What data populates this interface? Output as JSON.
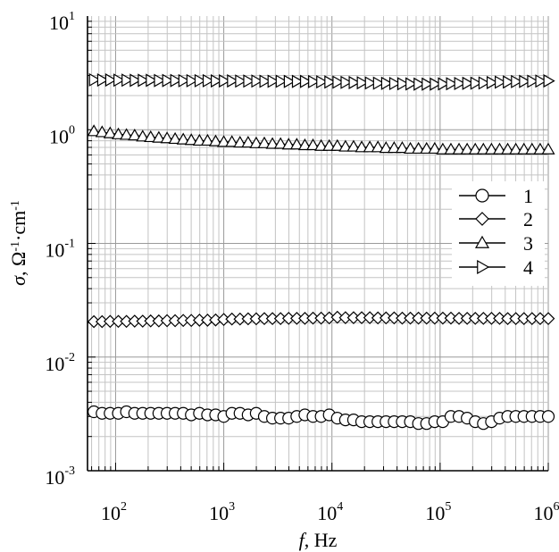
{
  "chart_data": {
    "type": "scatter",
    "title": "",
    "xlabel": {
      "symbol": "f",
      "rest": ", Hz"
    },
    "ylabel": {
      "symbol": "σ",
      "rest": ", Ω",
      "sup1": "-1",
      "mid": "·cm",
      "sup2": "-1"
    },
    "xscale": "log",
    "yscale": "log",
    "xlim": [
      55,
      1000000
    ],
    "ylim": [
      0.001,
      10
    ],
    "grid": true,
    "legend_position": "right-middle",
    "x_tick_labels": [
      {
        "value": 100,
        "base": "10",
        "exp": "2"
      },
      {
        "value": 1000,
        "base": "10",
        "exp": "3"
      },
      {
        "value": 10000,
        "base": "10",
        "exp": "4"
      },
      {
        "value": 100000,
        "base": "10",
        "exp": "5"
      },
      {
        "value": 1000000,
        "base": "10",
        "exp": "6"
      }
    ],
    "y_tick_labels": [
      {
        "value": 0.001,
        "base": "10",
        "exp": "-3"
      },
      {
        "value": 0.01,
        "base": "10",
        "exp": "-2"
      },
      {
        "value": 0.1,
        "base": "10",
        "exp": "-1"
      },
      {
        "value": 1,
        "base": "10",
        "exp": "0"
      },
      {
        "value": 10,
        "base": "10",
        "exp": "1"
      }
    ],
    "x": [
      63.1,
      72.8,
      84.0,
      97.0,
      112.0,
      129.3,
      149.2,
      172.3,
      198.9,
      229.6,
      265.0,
      306.0,
      353.2,
      407.7,
      470.7,
      543.4,
      627.3,
      724.2,
      836.0,
      965.1,
      1114.1,
      1286.1,
      1484.7,
      1714.0,
      1978.6,
      2284.1,
      2636.8,
      3043.9,
      3513.9,
      4056.5,
      4682.9,
      5406.0,
      6240.7,
      7204.4,
      8316.8,
      9601.0,
      11083.5,
      12794.9,
      14770.6,
      17051.3,
      19684.2,
      22723.6,
      26232.3,
      30282.8,
      34958.8,
      40356.7,
      46588.2,
      53781.9,
      62086.3,
      71673.1,
      82740.2,
      95516.3,
      110265.1,
      127291.3,
      146946.6,
      169636.9,
      195830.6,
      226069.0,
      260977.0,
      301275.0,
      347795.5,
      401499.6,
      463497.8,
      535069.0,
      617689.0,
      713065.0,
      823168.0,
      950265.0,
      1000000.0
    ],
    "series": [
      {
        "name": "1",
        "marker": "circle",
        "x": [
          63,
          75,
          89,
          106,
          126,
          150,
          178,
          211,
          251,
          299,
          355,
          422,
          501,
          596,
          708,
          841,
          1000,
          1189,
          1413,
          1679,
          1995,
          2371,
          2818,
          3350,
          3981,
          4732,
          5623,
          6683,
          7943,
          9441,
          11220,
          13335,
          15849,
          18836,
          22387,
          26607,
          31623,
          37584,
          44668,
          53088,
          63096,
          74989,
          89125,
          105925,
          125893,
          149624,
          177828,
          211349,
          251189,
          298538,
          354813,
          421697,
          501187,
          595662,
          707946,
          841395,
          1000000
        ],
        "values": [
          0.0033,
          0.0032,
          0.0032,
          0.0032,
          0.0033,
          0.0032,
          0.0032,
          0.0032,
          0.0032,
          0.0032,
          0.0032,
          0.0032,
          0.0031,
          0.0032,
          0.0031,
          0.0031,
          0.003,
          0.0032,
          0.0032,
          0.0031,
          0.0032,
          0.003,
          0.0029,
          0.0029,
          0.0029,
          0.003,
          0.0031,
          0.003,
          0.003,
          0.0031,
          0.0029,
          0.0028,
          0.0028,
          0.0027,
          0.0027,
          0.0027,
          0.0027,
          0.0027,
          0.0027,
          0.0027,
          0.0026,
          0.0026,
          0.0027,
          0.0027,
          0.003,
          0.003,
          0.0029,
          0.0027,
          0.0026,
          0.0027,
          0.0029,
          0.003,
          0.003,
          0.003,
          0.003,
          0.003,
          0.003
        ]
      },
      {
        "name": "2",
        "marker": "diamond",
        "x": [
          63,
          75,
          89,
          106,
          126,
          150,
          178,
          211,
          251,
          299,
          355,
          422,
          501,
          596,
          708,
          841,
          1000,
          1189,
          1413,
          1679,
          1995,
          2371,
          2818,
          3350,
          3981,
          4732,
          5623,
          6683,
          7943,
          9441,
          11220,
          13335,
          15849,
          18836,
          22387,
          26607,
          31623,
          37584,
          44668,
          53088,
          63096,
          74989,
          89125,
          105925,
          125893,
          149624,
          177828,
          211349,
          251189,
          298538,
          354813,
          421697,
          501187,
          595662,
          707946,
          841395,
          1000000
        ],
        "values": [
          0.0205,
          0.0205,
          0.0206,
          0.0206,
          0.0206,
          0.0207,
          0.0207,
          0.0208,
          0.0208,
          0.0209,
          0.0209,
          0.021,
          0.021,
          0.0211,
          0.0211,
          0.0212,
          0.0214,
          0.0216,
          0.0216,
          0.0217,
          0.0217,
          0.0218,
          0.0218,
          0.0218,
          0.0219,
          0.0219,
          0.0219,
          0.022,
          0.022,
          0.0221,
          0.0224,
          0.0222,
          0.0222,
          0.0222,
          0.0222,
          0.0221,
          0.0221,
          0.0221,
          0.022,
          0.022,
          0.022,
          0.022,
          0.022,
          0.022,
          0.022,
          0.0219,
          0.0219,
          0.0219,
          0.0219,
          0.0219,
          0.0219,
          0.0218,
          0.0218,
          0.0218,
          0.0218,
          0.0218,
          0.0218
        ]
      },
      {
        "name": "3",
        "marker": "triangle-up",
        "x": [
          63,
          75,
          89,
          106,
          126,
          150,
          178,
          211,
          251,
          299,
          355,
          422,
          501,
          596,
          708,
          841,
          1000,
          1189,
          1413,
          1679,
          1995,
          2371,
          2818,
          3350,
          3981,
          4732,
          5623,
          6683,
          7943,
          9441,
          11220,
          13335,
          15849,
          18836,
          22387,
          26607,
          31623,
          37584,
          44668,
          53088,
          63096,
          74989,
          89125,
          105925,
          125893,
          149624,
          177828,
          211349,
          251189,
          298538,
          354813,
          421697,
          501187,
          595662,
          707946,
          841395,
          1000000
        ],
        "values": [
          0.97,
          0.95,
          0.93,
          0.91,
          0.9,
          0.89,
          0.87,
          0.86,
          0.85,
          0.84,
          0.83,
          0.82,
          0.81,
          0.8,
          0.8,
          0.79,
          0.78,
          0.78,
          0.77,
          0.77,
          0.76,
          0.76,
          0.75,
          0.75,
          0.74,
          0.74,
          0.73,
          0.73,
          0.72,
          0.72,
          0.72,
          0.71,
          0.71,
          0.7,
          0.7,
          0.7,
          0.69,
          0.69,
          0.69,
          0.68,
          0.68,
          0.68,
          0.68,
          0.67,
          0.67,
          0.67,
          0.67,
          0.67,
          0.67,
          0.67,
          0.67,
          0.67,
          0.67,
          0.67,
          0.67,
          0.67,
          0.67
        ]
      },
      {
        "name": "4",
        "marker": "triangle-right",
        "x": [
          63,
          75,
          89,
          106,
          126,
          150,
          178,
          211,
          251,
          299,
          355,
          422,
          501,
          596,
          708,
          841,
          1000,
          1189,
          1413,
          1679,
          1995,
          2371,
          2818,
          3350,
          3981,
          4732,
          5623,
          6683,
          7943,
          9441,
          11220,
          13335,
          15849,
          18836,
          22387,
          26607,
          31623,
          37584,
          44668,
          53088,
          63096,
          74989,
          89125,
          105925,
          125893,
          149624,
          177828,
          211349,
          251189,
          298538,
          354813,
          421697,
          501187,
          595662,
          707946,
          841395,
          1000000
        ],
        "values": [
          2.75,
          2.74,
          2.74,
          2.73,
          2.73,
          2.72,
          2.72,
          2.72,
          2.71,
          2.71,
          2.71,
          2.7,
          2.7,
          2.7,
          2.7,
          2.69,
          2.69,
          2.69,
          2.68,
          2.68,
          2.68,
          2.67,
          2.67,
          2.67,
          2.66,
          2.66,
          2.66,
          2.65,
          2.64,
          2.63,
          2.62,
          2.61,
          2.6,
          2.59,
          2.58,
          2.57,
          2.56,
          2.55,
          2.54,
          2.53,
          2.52,
          2.52,
          2.52,
          2.53,
          2.54,
          2.55,
          2.56,
          2.57,
          2.58,
          2.6,
          2.62,
          2.63,
          2.65,
          2.66,
          2.67,
          2.68,
          2.69
        ]
      }
    ]
  }
}
